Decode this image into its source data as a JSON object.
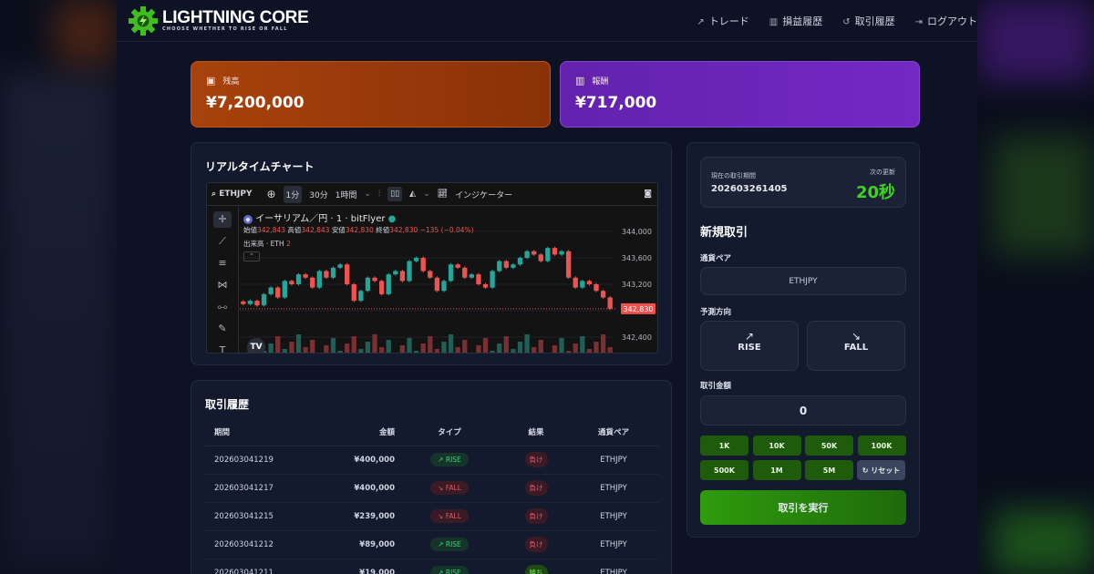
{
  "brand": {
    "name": "LIGHTNING CORE",
    "tagline": "CHOOSE WHETHER TO RISE OR FALL",
    "accent": "#3fbf1f"
  },
  "nav": [
    {
      "icon": "trend-up-icon",
      "label": "トレード"
    },
    {
      "icon": "bar-chart-icon",
      "label": "損益履歴"
    },
    {
      "icon": "history-icon",
      "label": "取引履歴"
    },
    {
      "icon": "logout-icon",
      "label": "ログアウト"
    }
  ],
  "balance": {
    "label": "残高",
    "value": "¥7,200,000",
    "color": "#a33d0b"
  },
  "reward": {
    "label": "報酬",
    "value": "¥717,000",
    "color": "#6a24b8"
  },
  "chart": {
    "title": "リアルタイムチャート",
    "symbol": "ETHJPY",
    "intervals": [
      "1分",
      "30分",
      "1時間"
    ],
    "indicator_label": "インジケーター",
    "legend_title": "イーサリアム／円 · 1 · bitFlyer",
    "ohlc": {
      "open_label": "始値",
      "open": "342,843",
      "high_label": "高値",
      "high": "342,843",
      "low_label": "安値",
      "low": "342,830",
      "close_label": "終値",
      "close": "342,830",
      "change": "−135 (−0.04%)"
    },
    "volume_label": "出来高 · ETH",
    "volume": "2",
    "price_ticks": [
      "344,000",
      "343,600",
      "343,200",
      "342,400"
    ],
    "last_price": "342,830",
    "closes": [
      342900,
      342950,
      342880,
      343050,
      343150,
      343000,
      343250,
      343200,
      343350,
      343300,
      343150,
      343400,
      343300,
      343450,
      343500,
      343200,
      342950,
      343100,
      343300,
      343250,
      343050,
      343350,
      343400,
      343250,
      343550,
      343600,
      343400,
      343300,
      343100,
      343250,
      343500,
      343450,
      343300,
      343350,
      343200,
      343150,
      343400,
      343550,
      343450,
      343500,
      343600,
      343700,
      343650,
      343550,
      343750,
      343650,
      343700,
      343300,
      343150,
      343250,
      343200,
      343100,
      343000,
      342830
    ]
  },
  "history": {
    "title": "取引履歴",
    "columns": [
      "期間",
      "金額",
      "タイプ",
      "結果",
      "通貨ペア"
    ],
    "rows": [
      {
        "period": "202603041219",
        "amount": "¥400,000",
        "type": "RISE",
        "result": "負け",
        "pair": "ETHJPY"
      },
      {
        "period": "202603041217",
        "amount": "¥400,000",
        "type": "FALL",
        "result": "負け",
        "pair": "ETHJPY"
      },
      {
        "period": "202603041215",
        "amount": "¥239,000",
        "type": "FALL",
        "result": "負け",
        "pair": "ETHJPY"
      },
      {
        "period": "202603041212",
        "amount": "¥89,000",
        "type": "RISE",
        "result": "負け",
        "pair": "ETHJPY"
      },
      {
        "period": "202603041211",
        "amount": "¥19,000",
        "type": "RISE",
        "result": "勝ち",
        "pair": "ETHJPY"
      }
    ]
  },
  "trade": {
    "current_period_label": "現在の取引期間",
    "current_period": "202603261405",
    "next_update_label": "次の更新",
    "next_update": "20秒",
    "title": "新規取引",
    "pair_label": "通貨ペア",
    "pair": "ETHJPY",
    "direction_label": "予測方向",
    "rise": "RISE",
    "fall": "FALL",
    "amount_label": "取引金額",
    "amount": "0",
    "presets": [
      "1K",
      "10K",
      "50K",
      "100K",
      "500K",
      "1M",
      "5M"
    ],
    "reset": "リセット",
    "execute": "取引を実行"
  }
}
